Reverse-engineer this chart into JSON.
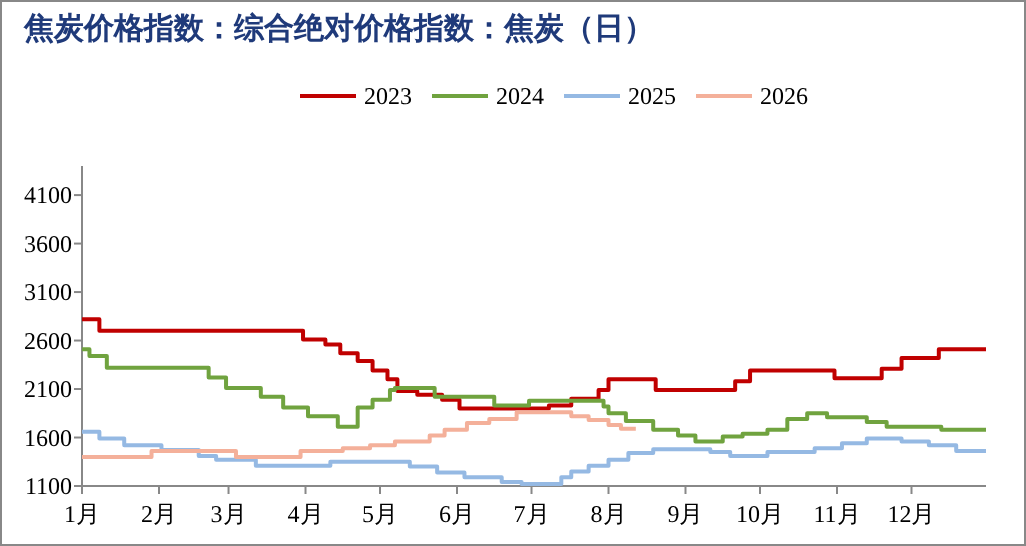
{
  "chart_data": {
    "type": "step",
    "title": "焦炭价格指数：综合绝对价格指数：焦炭（日）",
    "legend": "top",
    "grid": false,
    "xlim": [
      "--01-01",
      "--12-31"
    ],
    "xticks": [
      {
        "value": "--01-01",
        "label": "1月"
      },
      {
        "value": "--02-01",
        "label": "2月"
      },
      {
        "value": "--03-01",
        "label": "3月"
      },
      {
        "value": "--04-01",
        "label": "4月"
      },
      {
        "value": "--05-01",
        "label": "5月"
      },
      {
        "value": "--06-01",
        "label": "6月"
      },
      {
        "value": "--07-01",
        "label": "7月"
      },
      {
        "value": "--08-01",
        "label": "8月"
      },
      {
        "value": "--09-01",
        "label": "9月"
      },
      {
        "value": "--10-01",
        "label": "10月"
      },
      {
        "value": "--11-01",
        "label": "11月"
      },
      {
        "value": "--12-01",
        "label": "12月"
      }
    ],
    "ylim": [
      1100,
      4400
    ],
    "yticks": [
      1100,
      1600,
      2100,
      2600,
      3100,
      3600,
      4100
    ],
    "series": [
      {
        "name": "2023",
        "color": "#c00000",
        "x": [
          "--01-01",
          "--01-08",
          "--03-31",
          "--04-09",
          "--04-15",
          "--04-22",
          "--04-28",
          "--05-04",
          "--05-08",
          "--05-16",
          "--05-26",
          "--06-02",
          "--07-08",
          "--07-17",
          "--07-28",
          "--08-01",
          "--08-20",
          "--09-21",
          "--09-27",
          "--10-31",
          "--11-19",
          "--11-27",
          "--12-12",
          "--12-31"
        ],
        "values": [
          2820,
          2700,
          2610,
          2560,
          2470,
          2390,
          2290,
          2200,
          2080,
          2040,
          1990,
          1900,
          1930,
          2000,
          2090,
          2200,
          2090,
          2180,
          2290,
          2210,
          2310,
          2420,
          2510,
          2510
        ]
      },
      {
        "name": "2024",
        "color": "#70a33f",
        "x": [
          "--01-01",
          "--01-04",
          "--01-11",
          "--02-21",
          "--02-28",
          "--03-14",
          "--03-23",
          "--04-02",
          "--04-14",
          "--04-22",
          "--04-28",
          "--05-05",
          "--05-07",
          "--05-23",
          "--06-16",
          "--06-30",
          "--07-30",
          "--08-01",
          "--08-08",
          "--08-19",
          "--08-29",
          "--09-05",
          "--09-16",
          "--09-24",
          "--10-04",
          "--10-12",
          "--10-20",
          "--10-28",
          "--11-13",
          "--11-21",
          "--12-13",
          "--12-31"
        ],
        "values": [
          2510,
          2440,
          2320,
          2220,
          2110,
          2020,
          1910,
          1820,
          1710,
          1910,
          1990,
          2090,
          2110,
          2020,
          1930,
          1980,
          1920,
          1850,
          1770,
          1680,
          1620,
          1560,
          1610,
          1640,
          1680,
          1790,
          1850,
          1810,
          1760,
          1710,
          1680,
          1680
        ]
      },
      {
        "name": "2025",
        "color": "#95b9e3",
        "x": [
          "--01-01",
          "--01-08",
          "--01-18",
          "--02-02",
          "--02-17",
          "--02-24",
          "--03-12",
          "--04-11",
          "--05-13",
          "--05-24",
          "--06-04",
          "--06-19",
          "--06-27",
          "--07-13",
          "--07-17",
          "--07-24",
          "--08-01",
          "--08-09",
          "--08-19",
          "--09-11",
          "--09-19",
          "--10-04",
          "--10-23",
          "--11-03",
          "--11-13",
          "--11-27",
          "--12-08",
          "--12-19",
          "--12-31"
        ],
        "values": [
          1660,
          1590,
          1520,
          1470,
          1410,
          1370,
          1310,
          1350,
          1300,
          1240,
          1190,
          1140,
          1120,
          1190,
          1250,
          1310,
          1370,
          1440,
          1480,
          1450,
          1410,
          1450,
          1490,
          1540,
          1590,
          1560,
          1520,
          1460,
          1460
        ]
      },
      {
        "name": "2026",
        "color": "#f4b09a",
        "x": [
          "--01-01",
          "--01-29",
          "--03-04",
          "--03-30",
          "--04-16",
          "--04-27",
          "--05-07",
          "--05-21",
          "--05-27",
          "--06-05",
          "--06-14",
          "--06-25",
          "--07-17",
          "--07-24",
          "--08-01",
          "--08-06",
          "--08-12"
        ],
        "values": [
          1400,
          1460,
          1400,
          1460,
          1490,
          1520,
          1560,
          1620,
          1680,
          1750,
          1790,
          1860,
          1820,
          1780,
          1730,
          1690,
          1690
        ]
      }
    ]
  }
}
